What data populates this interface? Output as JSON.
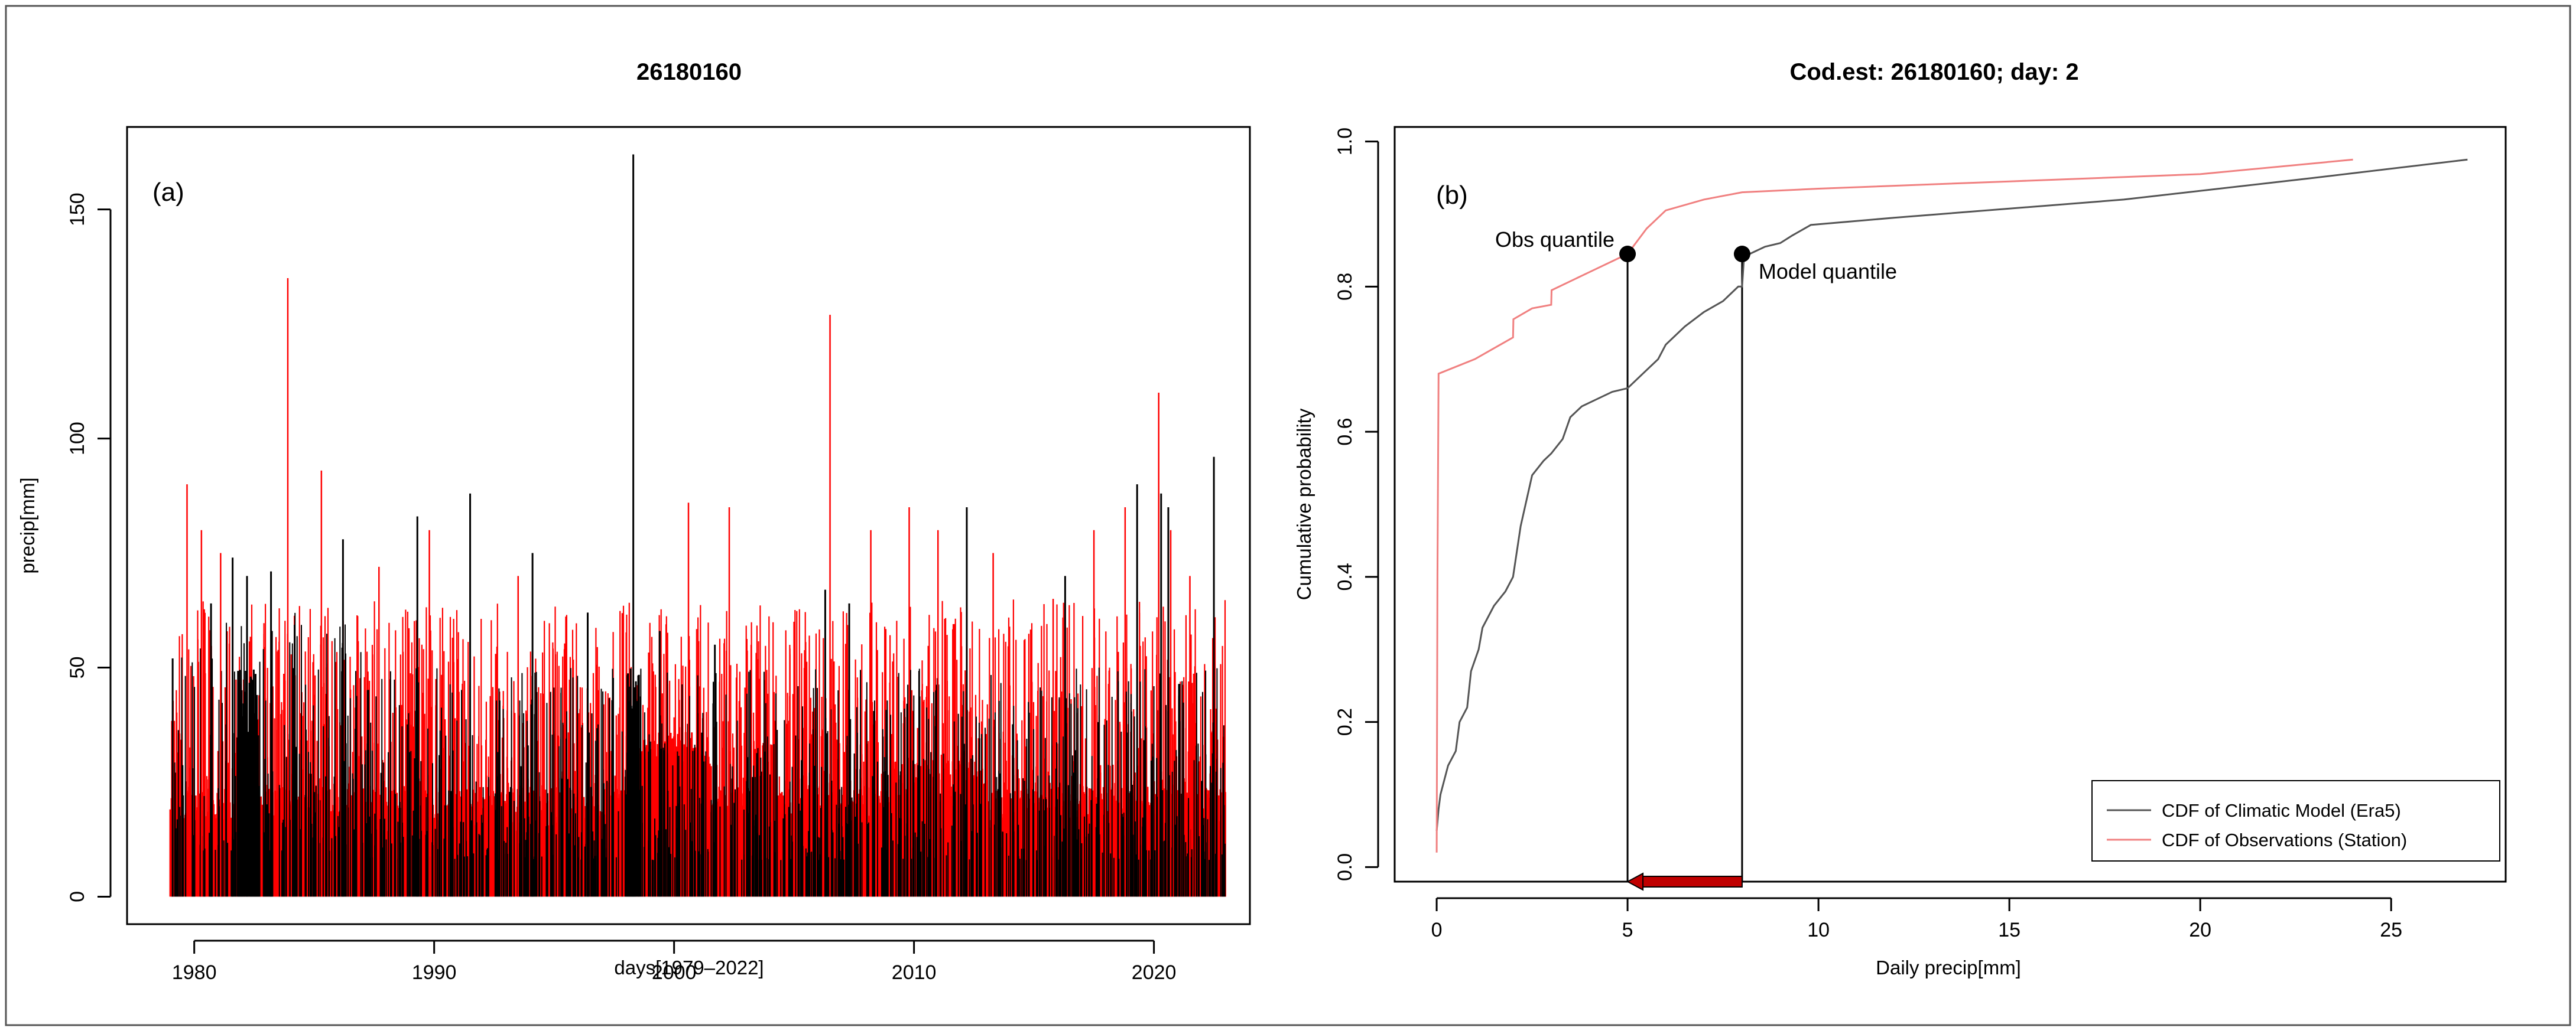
{
  "colors": {
    "model": "#000000",
    "obs": "#ff0000",
    "obs_line": "#f08080",
    "model_line": "#555555",
    "arrow": "#c00000"
  },
  "chart_data": [
    {
      "type": "bar",
      "title": "26180160",
      "panel_tag": "(a)",
      "xlabel": "days[1979–2022]",
      "ylabel": "precip[mm]",
      "xlim": [
        1977.2,
        2024.0
      ],
      "ylim": [
        -6,
        168
      ],
      "xticks": [
        1980,
        1990,
        2000,
        2010,
        2020
      ],
      "yticks": [
        0,
        50,
        100,
        150
      ],
      "grid": false,
      "series": [
        {
          "color": "#ff0000",
          "x": [
            1979.7,
            1980.3,
            1981.1,
            1983.9,
            1985.3,
            1987.7,
            1989.8,
            1993.5,
            2000.6,
            2002.3,
            2005.0,
            2006.5,
            2008.2,
            2009.8,
            2011.0,
            2013.3,
            2015.8,
            2017.5,
            2018.8,
            2020.2,
            2020.7,
            2021.5
          ],
          "values": [
            90,
            80,
            75,
            135,
            93,
            72,
            80,
            70,
            86,
            85,
            60,
            127,
            80,
            85,
            80,
            75,
            65,
            80,
            85,
            110,
            80,
            70
          ]
        },
        {
          "color": "#000000",
          "x": [
            1979.1,
            1980.7,
            1981.6,
            1982.2,
            1983.2,
            1986.2,
            1989.3,
            1991.5,
            1994.1,
            1996.4,
            1998.3,
            1999.4,
            2001.7,
            2006.3,
            2007.3,
            2012.2,
            2016.3,
            2019.3,
            2020.3,
            2020.6,
            2022.5
          ],
          "values": [
            52,
            64,
            74,
            70,
            71,
            78,
            83,
            88,
            75,
            62,
            162,
            58,
            55,
            67,
            64,
            85,
            70,
            90,
            88,
            85,
            96
          ]
        }
      ]
    },
    {
      "type": "line",
      "title": "Cod.est: 26180160; day: 2",
      "panel_tag": "(b)",
      "xlabel": "Daily precip[mm]",
      "ylabel": "Cumulative probability",
      "xlim": [
        -1.1,
        28.0
      ],
      "ylim": [
        -0.02,
        1.02
      ],
      "xticks": [
        0,
        5,
        10,
        15,
        20,
        25
      ],
      "yticks": [
        0.0,
        0.2,
        0.4,
        0.6,
        0.8,
        1.0
      ],
      "grid": false,
      "legend": "bottom-right",
      "series": [
        {
          "name": "CDF of Climatic Model (Era5)",
          "color": "#555555",
          "x": [
            0,
            0.05,
            0.1,
            0.3,
            0.5,
            0.6,
            0.8,
            0.9,
            1.1,
            1.2,
            1.5,
            1.8,
            2.0,
            2.2,
            2.5,
            2.8,
            3.0,
            3.3,
            3.5,
            3.8,
            4.2,
            4.6,
            5.0,
            5.4,
            5.8,
            6.0,
            6.5,
            7.0,
            7.5,
            7.9,
            8.0,
            8.05,
            8.2,
            8.6,
            9.0,
            9.3,
            9.8,
            12,
            18,
            23,
            27
          ],
          "values": [
            0.05,
            0.08,
            0.1,
            0.14,
            0.16,
            0.2,
            0.22,
            0.27,
            0.3,
            0.33,
            0.36,
            0.38,
            0.4,
            0.47,
            0.54,
            0.56,
            0.57,
            0.59,
            0.62,
            0.635,
            0.645,
            0.655,
            0.66,
            0.68,
            0.7,
            0.72,
            0.745,
            0.765,
            0.78,
            0.8,
            0.8,
            0.84,
            0.845,
            0.855,
            0.86,
            0.87,
            0.885,
            0.895,
            0.92,
            0.95,
            0.975
          ]
        },
        {
          "name": "CDF of Observations (Station)",
          "color": "#f08080",
          "x": [
            0,
            0.02,
            0.05,
            1.0,
            2.0,
            2.01,
            2.5,
            3.0,
            3.01,
            4.0,
            5.0,
            5.5,
            6.0,
            7.0,
            8.0,
            10,
            15,
            20,
            24
          ],
          "values": [
            0.02,
            0.4,
            0.68,
            0.7,
            0.73,
            0.755,
            0.77,
            0.775,
            0.795,
            0.82,
            0.845,
            0.88,
            0.905,
            0.92,
            0.93,
            0.935,
            0.945,
            0.955,
            0.975
          ]
        }
      ],
      "annotations": [
        {
          "text": "Obs quantile",
          "x": 5.0,
          "y": 0.845
        },
        {
          "text": "Model quantile",
          "x": 8.0,
          "y": 0.845
        }
      ],
      "arrow": {
        "from": [
          8.0,
          -0.02
        ],
        "to": [
          5.0,
          -0.02
        ]
      }
    }
  ]
}
